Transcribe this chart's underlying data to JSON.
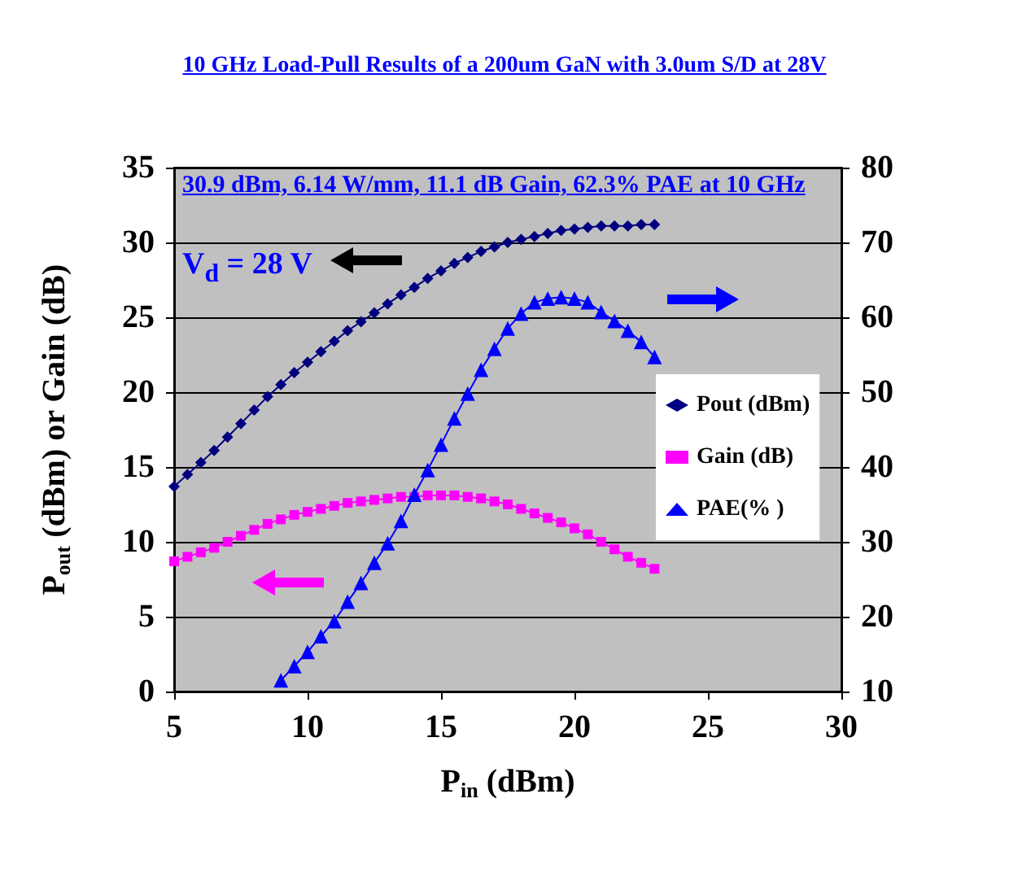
{
  "chart_data": {
    "type": "line",
    "title": "10 GHz Load-Pull Results of a 200um GaN with 3.0um S/D at 28V",
    "xlabel": "P$_{in}$ (dBm)",
    "ylabel": "P$_{out}$ (dBm) or Gain (dB)",
    "annotations": [
      "30.9 dBm, 6.14 W/mm, 11.1 dB Gain, 62.3%  PAE at 10 GHz",
      "V$_{d}$ = 28 V"
    ],
    "xlim": [
      5,
      30
    ],
    "xticks": [
      5,
      10,
      15,
      20,
      25,
      30
    ],
    "ylim": [
      0,
      35
    ],
    "yticks": [
      0,
      5,
      10,
      15,
      20,
      25,
      30,
      35
    ],
    "y2lim": [
      10,
      80
    ],
    "y2ticks": [
      10,
      20,
      30,
      40,
      50,
      60,
      70,
      80
    ],
    "grid": "y",
    "legend": "right",
    "series": [
      {
        "name": "Pout (dBm)",
        "color": "#000080",
        "marker": "diamond",
        "x": [
          5,
          5.5,
          6,
          6.5,
          7,
          7.5,
          8,
          8.5,
          9,
          9.5,
          10,
          10.5,
          11,
          11.5,
          12,
          12.5,
          13,
          13.5,
          14,
          14.5,
          15,
          15.5,
          16,
          16.5,
          17,
          17.5,
          18,
          18.5,
          19,
          19.5,
          20,
          20.5,
          21,
          21.5,
          22,
          22.5,
          23
        ],
        "values": [
          13.7,
          14.5,
          15.3,
          16.1,
          17.0,
          17.9,
          18.8,
          19.7,
          20.5,
          21.3,
          22.0,
          22.7,
          23.4,
          24.1,
          24.7,
          25.3,
          25.9,
          26.5,
          27.0,
          27.6,
          28.1,
          28.6,
          29.0,
          29.4,
          29.7,
          30.0,
          30.2,
          30.4,
          30.6,
          30.8,
          30.9,
          31.0,
          31.1,
          31.1,
          31.1,
          31.2,
          31.2
        ]
      },
      {
        "name": "Gain (dB)",
        "color": "#ff00ff",
        "marker": "square",
        "x": [
          5,
          5.5,
          6,
          6.5,
          7,
          7.5,
          8,
          8.5,
          9,
          9.5,
          10,
          10.5,
          11,
          11.5,
          12,
          12.5,
          13,
          13.5,
          14,
          14.5,
          15,
          15.5,
          16,
          16.5,
          17,
          17.5,
          18,
          18.5,
          19,
          19.5,
          20,
          20.5,
          21,
          21.5,
          22,
          22.5,
          23
        ],
        "values": [
          8.7,
          9.0,
          9.3,
          9.6,
          10.0,
          10.4,
          10.8,
          11.2,
          11.5,
          11.8,
          12.0,
          12.2,
          12.4,
          12.6,
          12.7,
          12.8,
          12.9,
          13.0,
          13.0,
          13.1,
          13.1,
          13.1,
          13.0,
          12.9,
          12.7,
          12.5,
          12.2,
          11.9,
          11.6,
          11.3,
          10.9,
          10.5,
          10.0,
          9.5,
          9.0,
          8.6,
          8.2
        ]
      },
      {
        "name": "PAE(% )",
        "color": "#0000ff",
        "marker": "triangle",
        "axis": "y2",
        "x": [
          9,
          9.5,
          10,
          10.5,
          11,
          11.5,
          12,
          12.5,
          13,
          13.5,
          14,
          14.5,
          15,
          15.5,
          16,
          16.5,
          17,
          17.5,
          18,
          18.5,
          19,
          19.5,
          20,
          20.5,
          21,
          21.5,
          22,
          22.5,
          23
        ],
        "values": [
          11.5,
          13.4,
          15.3,
          17.4,
          19.4,
          22,
          24.5,
          27.2,
          29.8,
          32.8,
          36.3,
          39.6,
          43,
          46.5,
          49.8,
          53,
          55.8,
          58.5,
          60.5,
          62,
          62.5,
          62.7,
          62.5,
          62,
          60.7,
          59.5,
          58.2,
          56.7,
          54.7
        ]
      }
    ]
  }
}
